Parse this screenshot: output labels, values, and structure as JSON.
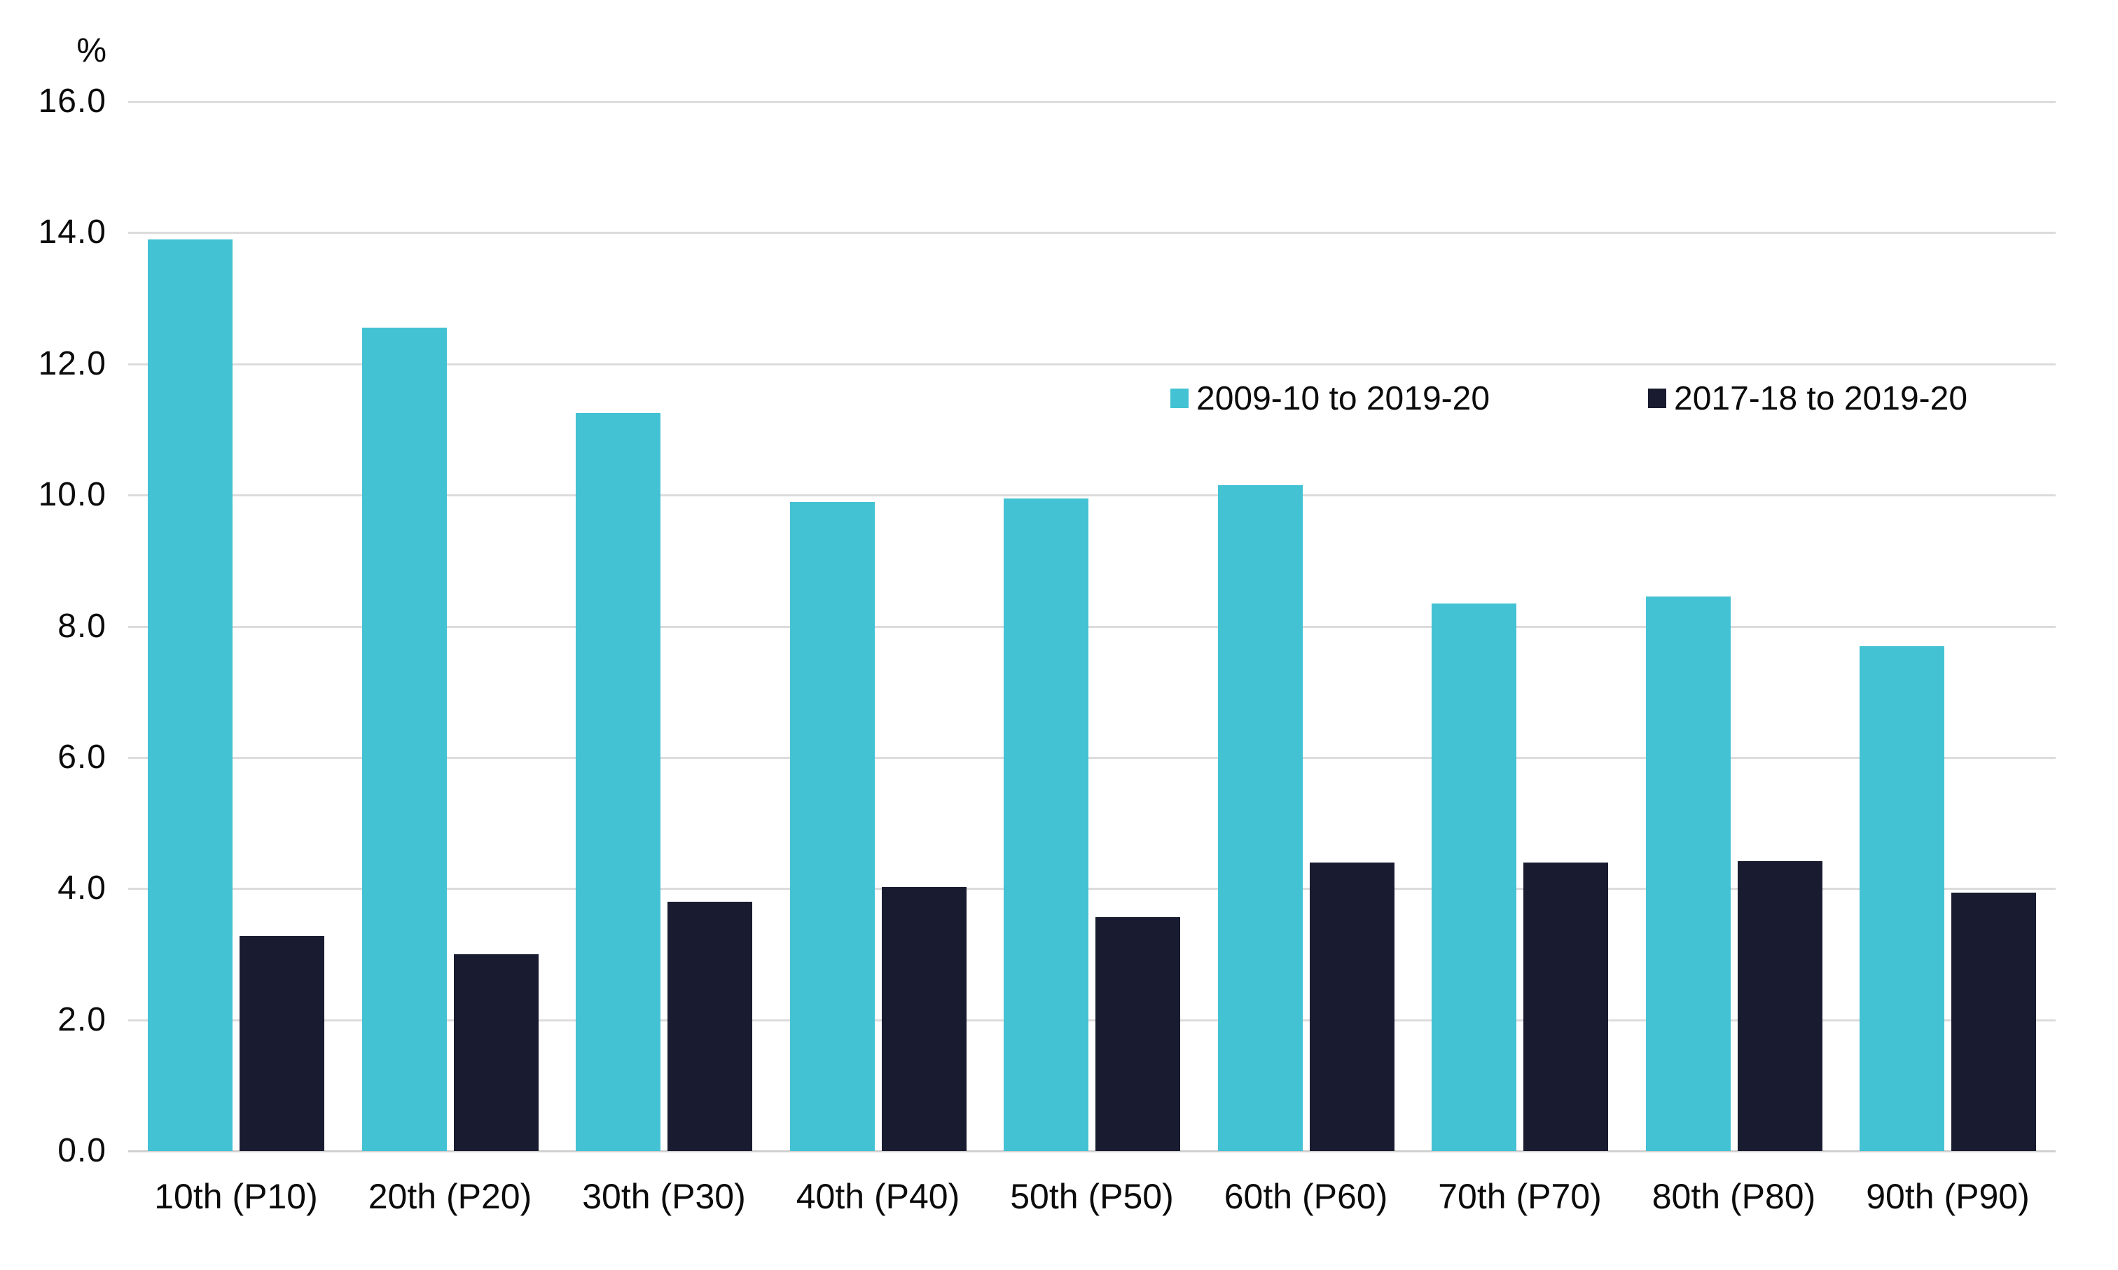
{
  "chart_data": {
    "type": "bar",
    "title": "",
    "xlabel": "",
    "ylabel": "%",
    "categories": [
      "10th (P10)",
      "20th (P20)",
      "30th (P30)",
      "40th (P40)",
      "50th (P50)",
      "60th (P60)",
      "70th (P70)",
      "80th (P80)",
      "90th (P90)"
    ],
    "series": [
      {
        "name": "2009-10 to 2019-20",
        "color": "#43C2D4",
        "values": [
          13.9,
          12.55,
          11.25,
          9.9,
          9.95,
          10.15,
          8.35,
          8.45,
          7.7
        ]
      },
      {
        "name": "2017-18 to 2019-20",
        "color": "#191C30",
        "values": [
          3.28,
          3.0,
          3.8,
          4.02,
          3.57,
          4.4,
          4.4,
          4.42,
          3.94
        ]
      }
    ],
    "ylim": [
      0,
      16
    ],
    "ytick_labels": [
      "0.0",
      "2.0",
      "4.0",
      "6.0",
      "8.0",
      "10.0",
      "12.0",
      "14.0",
      "16.0"
    ],
    "grid": "horizontal",
    "legend_position": "top-right-inside",
    "gridline_color": "#DCDCDC",
    "background_color": "#FFFFFF",
    "text_color": "#0B0B0B"
  }
}
